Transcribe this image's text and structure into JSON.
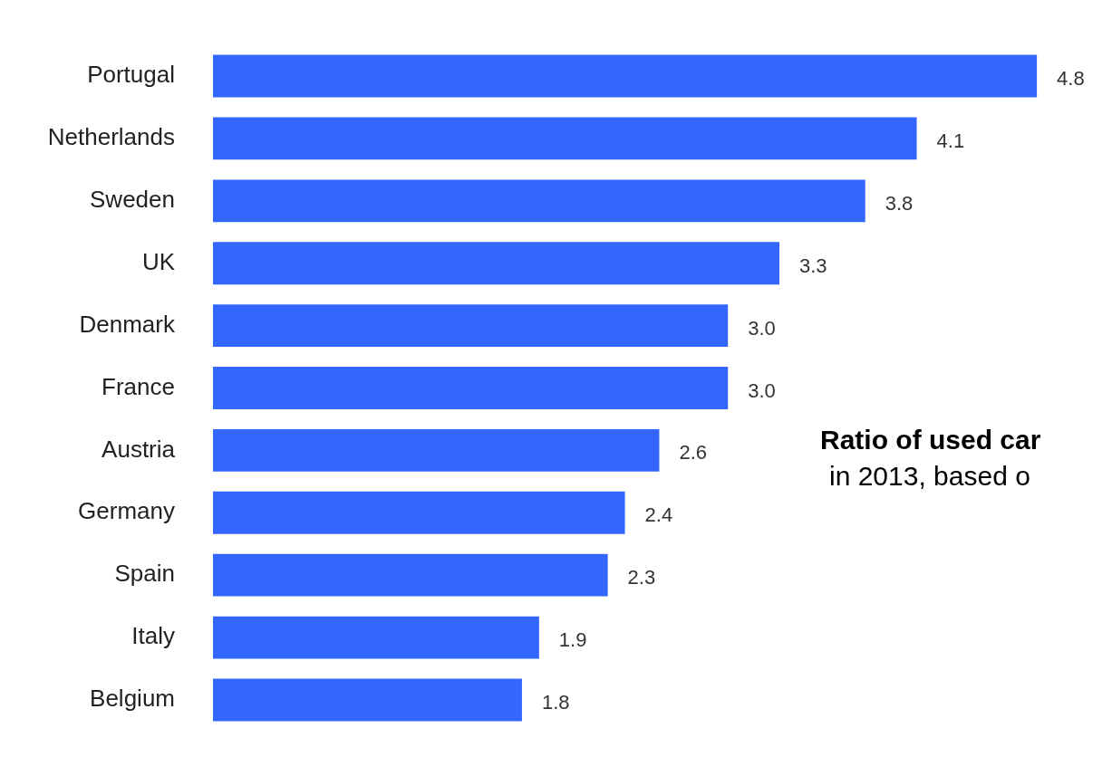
{
  "chart_data": {
    "type": "bar",
    "orientation": "horizontal",
    "categories": [
      "Portugal",
      "Netherlands",
      "Sweden",
      "UK",
      "Denmark",
      "France",
      "Austria",
      "Germany",
      "Spain",
      "Italy",
      "Belgium"
    ],
    "values": [
      4.8,
      4.1,
      3.8,
      3.3,
      3.0,
      3.0,
      2.6,
      2.4,
      2.3,
      1.9,
      1.8
    ],
    "value_labels": [
      "4.8",
      "4.1",
      "3.8",
      "3.3",
      "3.0",
      "3.0",
      "2.6",
      "2.4",
      "2.3",
      "1.9",
      "1.8"
    ],
    "color": "#3366ff",
    "legend": false,
    "annotations": [
      "Ratio of used car",
      "in 2013, based o"
    ]
  }
}
